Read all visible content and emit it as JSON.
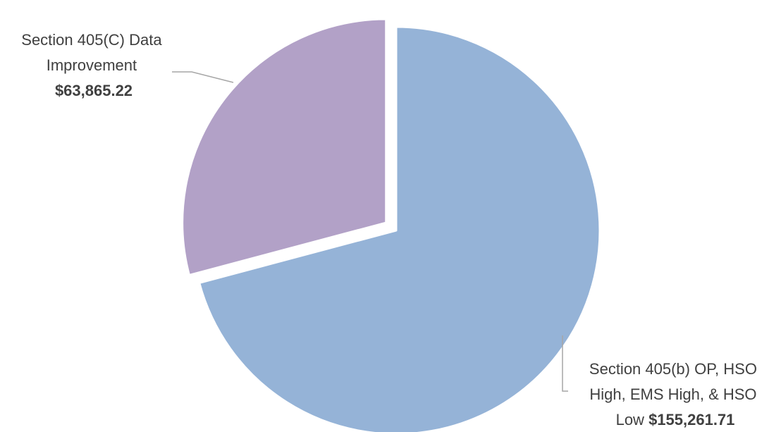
{
  "chart_data": {
    "type": "pie",
    "title": "",
    "slices": [
      {
        "label_lines": [
          "Section 405(b) OP, HSO",
          "High, EMS High, & HSO",
          "Low"
        ],
        "value_text": "$155,261.71",
        "value": 155261.71,
        "color": "#95b3d7",
        "exploded": false
      },
      {
        "label_lines": [
          "Section 405(C) Data",
          "Improvement"
        ],
        "value_text": "$63,865.22",
        "value": 63865.22,
        "color": "#b2a1c7",
        "exploded": true
      }
    ],
    "start_angle_deg": 0,
    "direction": "clockwise",
    "leader_line_color": "#a6a6a6"
  }
}
